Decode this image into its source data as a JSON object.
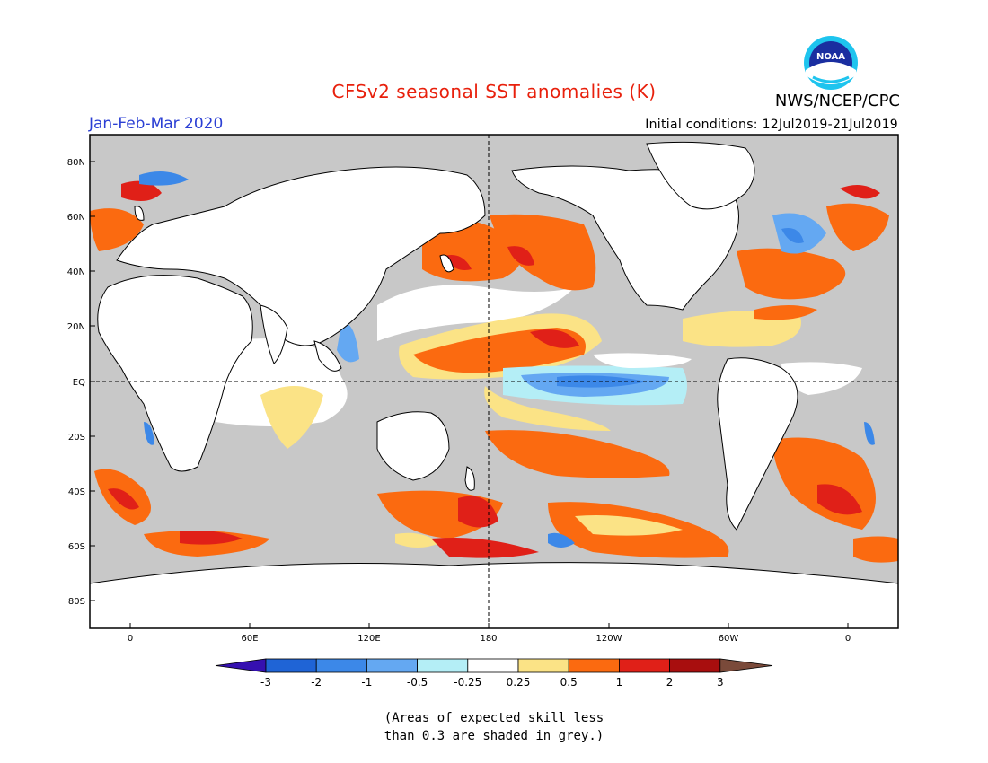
{
  "header": {
    "title": "CFSv2 seasonal SST anomalies (K)",
    "organization": "NWS/NCEP/CPC",
    "logo_text": "NOAA",
    "season": "Jan-Feb-Mar 2020",
    "initial_conditions": "Initial conditions: 12Jul2019-21Jul2019"
  },
  "map": {
    "lat_ticks": [
      "80N",
      "60N",
      "40N",
      "20N",
      "EQ",
      "20S",
      "40S",
      "60S",
      "80S"
    ],
    "lon_ticks": [
      "0",
      "60E",
      "120E",
      "180",
      "120W",
      "60W",
      "0"
    ],
    "colors": {
      "land": "#ffffff",
      "low_skill": "#c8c8c8",
      "coast": "#000000"
    }
  },
  "legend": {
    "labels": [
      "-3",
      "-2",
      "-1",
      "-0.5",
      "-0.25",
      "0.25",
      "0.5",
      "1",
      "2",
      "3"
    ],
    "colors": [
      "#3510b0",
      "#1f64d6",
      "#3c88e8",
      "#64a8f2",
      "#b4eef6",
      "#ffffff",
      "#fbe386",
      "#fb6a10",
      "#e02018",
      "#a80e0e",
      "#7a4a3a"
    ]
  },
  "note": {
    "line1": "(Areas of expected skill less",
    "line2": "than 0.3 are shaded in grey.)"
  }
}
